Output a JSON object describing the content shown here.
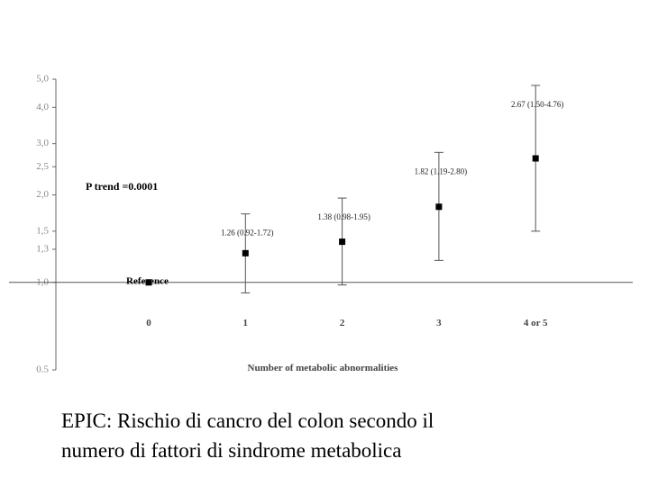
{
  "chart_data": {
    "type": "errorbar",
    "title": [
      "EPIC: Rischio di cancro del colon secondo  il",
      "numero di fattori di sindrome metabolica"
    ],
    "x_label": "Number of metabolic abnormalities",
    "annotation": "P trend =0.0001",
    "reference_label": "Reference",
    "categories": [
      "0",
      "1",
      "2",
      "3",
      "4 or 5"
    ],
    "series": [
      {
        "values": [
          1.0,
          1.26,
          1.38,
          1.82,
          2.67
        ],
        "lower": [
          null,
          0.92,
          0.98,
          1.19,
          1.5
        ],
        "upper": [
          null,
          1.72,
          1.95,
          2.8,
          4.76
        ],
        "value_labels": [
          null,
          "1.26 (0.92-1.72)",
          "1.38 (0.98-1.95)",
          "1.82 (1.19-2.80)",
          "2.67 (1.50-4.76)"
        ],
        "color": "#000000"
      }
    ],
    "log_scale": true,
    "ylim": [
      0.5,
      5.0
    ],
    "yticks": [
      {
        "value": 0.5,
        "label": "0.5"
      },
      {
        "value": 1.0,
        "label": "1,0"
      },
      {
        "value": 1.3,
        "label": "1,3"
      },
      {
        "value": 1.5,
        "label": "1,5"
      },
      {
        "value": 2.0,
        "label": "2,0"
      },
      {
        "value": 2.5,
        "label": "2,5"
      },
      {
        "value": 3.0,
        "label": "3,0"
      },
      {
        "value": 4.0,
        "label": "4,0"
      },
      {
        "value": 5.0,
        "label": "5,0"
      }
    ]
  }
}
